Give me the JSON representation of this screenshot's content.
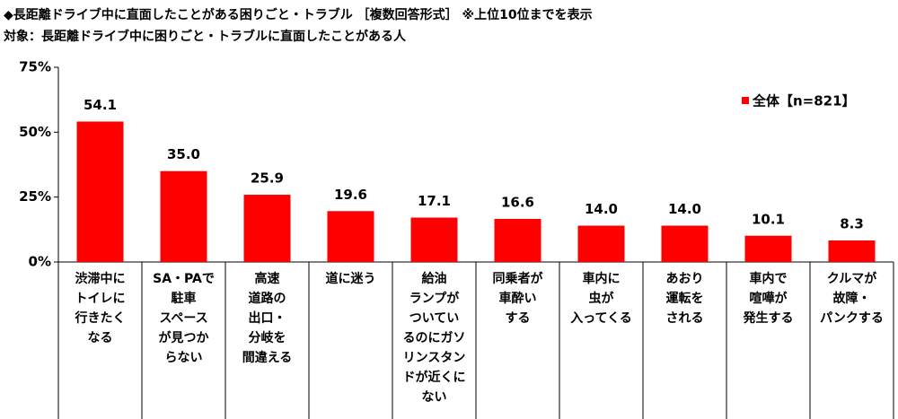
{
  "chart_data": {
    "type": "bar",
    "title": "◆長距離ドライブ中に直面したことがある困りごと・トラブル ［複数回答形式］ ※上位10位までを表示",
    "subtitle": "対象：長距離ドライブ中に困りごと・トラブルに直面したことがある人",
    "categories": [
      "渋滞中に\nトイレに\n行きたく\nなる",
      "SA・PAで\n駐車\nスペース\nが見つか\nらない",
      "高速\n道路の\n出口・\n分岐を\n間違える",
      "道に迷う",
      "給油\nランプが\nついてい\nるのにガソ\nリンスタン\nドが近くに\nない",
      "同乗者が\n車酔い\nする",
      "車内に\n虫が\n入ってくる",
      "あおり\n運転を\nされる",
      "車内で\n喧嘩が\n発生する",
      "クルマが\n故障・\nパンクする"
    ],
    "series": [
      {
        "name": "全体【n=821】",
        "color": "#ff0000",
        "values": [
          54.1,
          35.0,
          25.9,
          19.6,
          17.1,
          16.6,
          14.0,
          14.0,
          10.1,
          8.3
        ],
        "value_labels": [
          "54.1",
          "35.0",
          "25.9",
          "19.6",
          "17.1",
          "16.6",
          "14.0",
          "14.0",
          "10.1",
          "8.3"
        ]
      }
    ],
    "ylim": [
      0,
      75
    ],
    "yticks": [
      {
        "value": 0,
        "label": "0%"
      },
      {
        "value": 25,
        "label": "25%"
      },
      {
        "value": 50,
        "label": "50%"
      },
      {
        "value": 75,
        "label": "75%"
      }
    ],
    "legend": "upper-right"
  }
}
